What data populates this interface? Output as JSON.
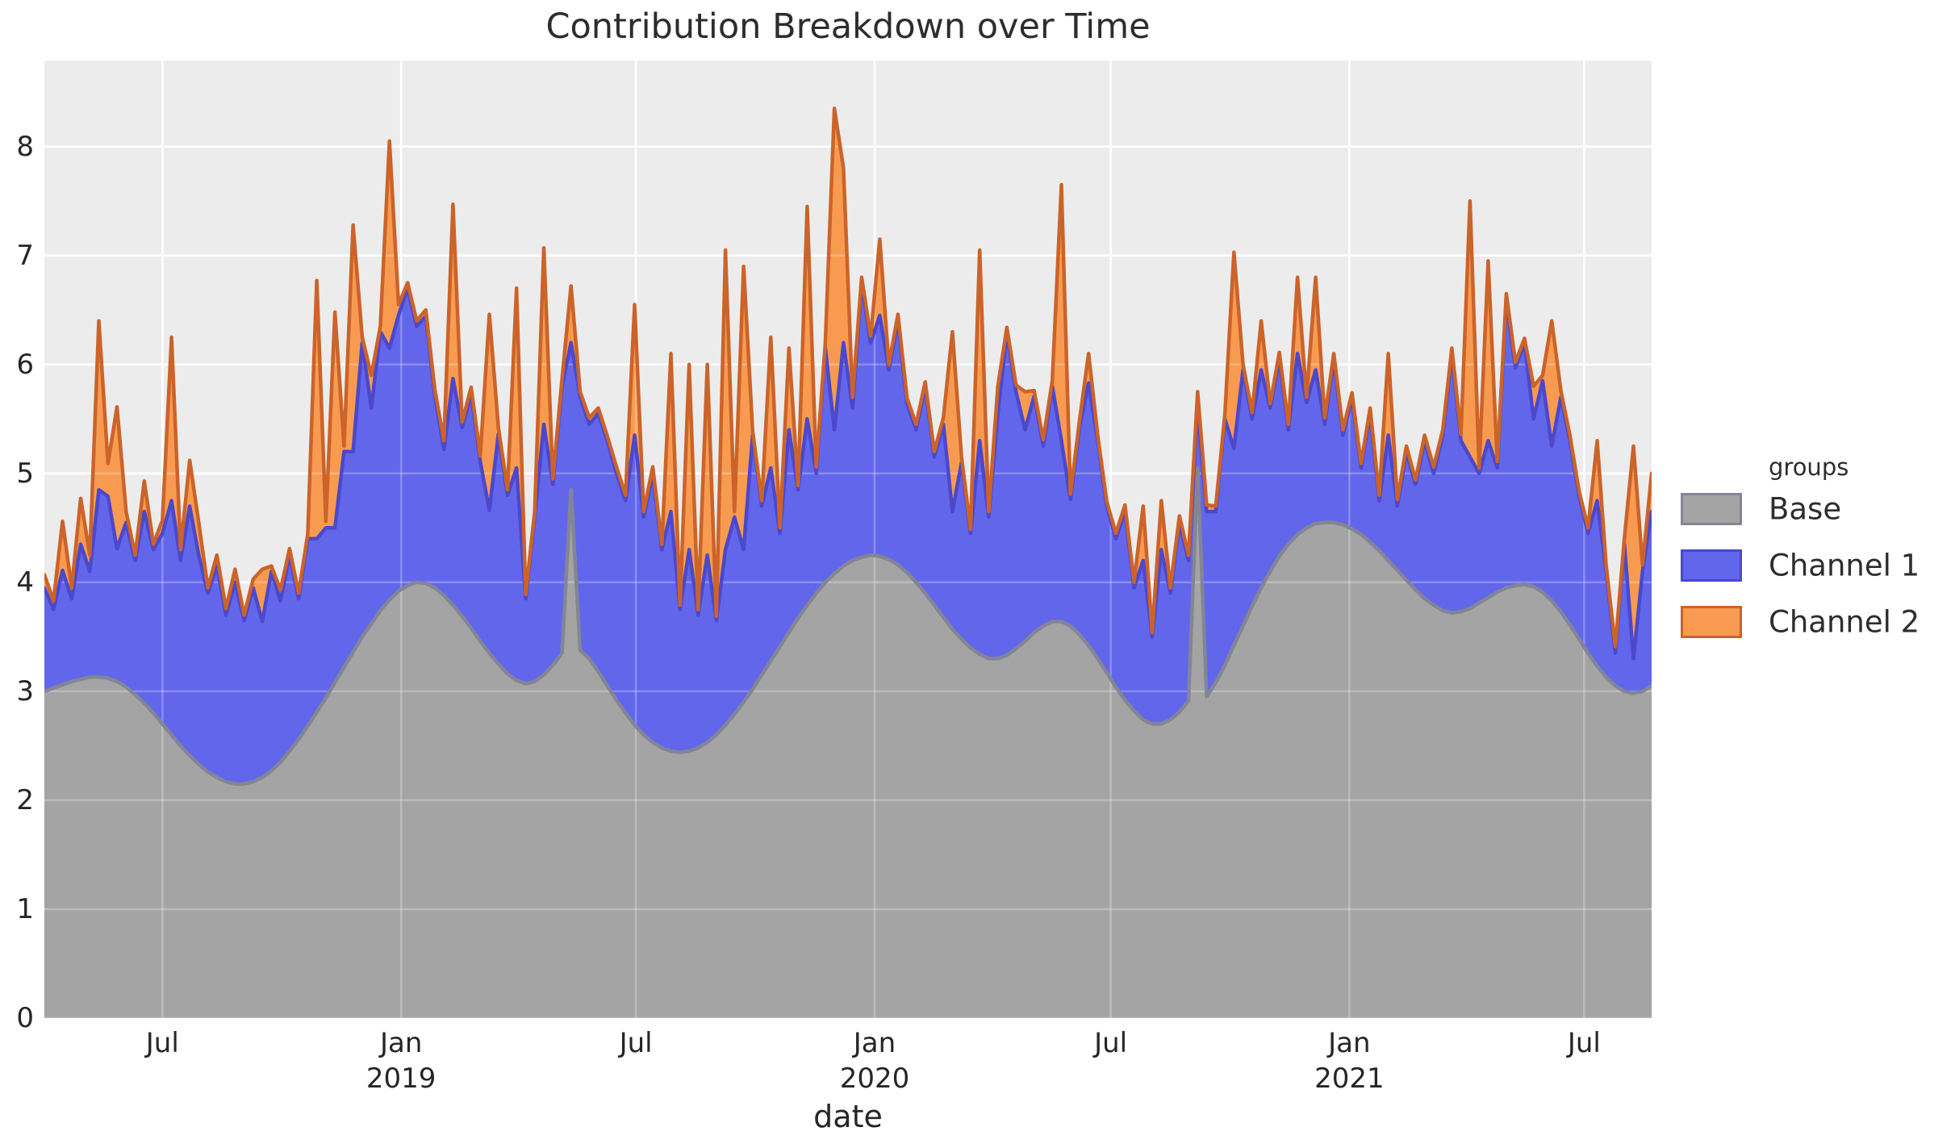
{
  "chart": {
    "title": "Contribution Breakdown over Time"
  },
  "legend": {
    "title": "groups"
  },
  "colors": {
    "figure_bg": "#ffffff",
    "plot_bg": "#ececec",
    "gridline": "#ffffff",
    "tick_text": "#262626",
    "title_text": "#2d2d2d"
  },
  "chart_data": {
    "type": "area",
    "stacked": true,
    "title": "Contribution Breakdown over Time",
    "xlabel": "date",
    "ylabel": "",
    "grid": true,
    "legend_position": "right",
    "ylim": [
      0,
      8.79
    ],
    "yticks": [
      0,
      1,
      2,
      3,
      4,
      5,
      6,
      7,
      8
    ],
    "x_start_date": "2018-04-01",
    "x_step_days": 7,
    "n_points": 178,
    "xticks": [
      {
        "week": 13.0,
        "label": "Jul"
      },
      {
        "week": 39.29,
        "label": "Jan",
        "year": "2019"
      },
      {
        "week": 65.14,
        "label": "Jul"
      },
      {
        "week": 91.43,
        "label": "Jan",
        "year": "2020"
      },
      {
        "week": 117.43,
        "label": "Jul"
      },
      {
        "week": 143.71,
        "label": "Jan",
        "year": "2021"
      },
      {
        "week": 169.57,
        "label": "Jul"
      }
    ],
    "series": [
      {
        "name": "Base",
        "fill": "#a4a4a4",
        "edge": "#828694",
        "values": [
          3.0,
          3.03,
          3.06,
          3.09,
          3.11,
          3.13,
          3.13,
          3.12,
          3.09,
          3.04,
          2.97,
          2.89,
          2.8,
          2.7,
          2.6,
          2.5,
          2.41,
          2.33,
          2.26,
          2.21,
          2.17,
          2.15,
          2.15,
          2.17,
          2.21,
          2.27,
          2.35,
          2.45,
          2.56,
          2.68,
          2.81,
          2.94,
          3.08,
          3.22,
          3.36,
          3.5,
          3.62,
          3.74,
          3.84,
          3.92,
          3.97,
          4.0,
          3.99,
          3.95,
          3.88,
          3.79,
          3.69,
          3.58,
          3.46,
          3.35,
          3.25,
          3.16,
          3.1,
          3.07,
          3.09,
          3.15,
          3.24,
          3.35,
          4.85,
          3.38,
          3.3,
          3.18,
          3.05,
          2.92,
          2.8,
          2.69,
          2.6,
          2.53,
          2.48,
          2.45,
          2.44,
          2.45,
          2.48,
          2.53,
          2.6,
          2.69,
          2.79,
          2.9,
          3.02,
          3.15,
          3.28,
          3.41,
          3.54,
          3.67,
          3.79,
          3.9,
          4.0,
          4.08,
          4.15,
          4.2,
          4.23,
          4.25,
          4.24,
          4.21,
          4.16,
          4.09,
          4.0,
          3.9,
          3.79,
          3.68,
          3.57,
          3.48,
          3.4,
          3.34,
          3.3,
          3.3,
          3.33,
          3.39,
          3.46,
          3.54,
          3.6,
          3.64,
          3.64,
          3.6,
          3.52,
          3.42,
          3.3,
          3.17,
          3.04,
          2.92,
          2.82,
          2.74,
          2.7,
          2.7,
          2.74,
          2.81,
          2.91,
          5.05,
          2.95,
          3.08,
          3.24,
          3.42,
          3.6,
          3.78,
          3.95,
          4.1,
          4.24,
          4.35,
          4.44,
          4.5,
          4.54,
          4.55,
          4.55,
          4.53,
          4.49,
          4.44,
          4.37,
          4.29,
          4.2,
          4.11,
          4.02,
          3.93,
          3.85,
          3.79,
          3.74,
          3.72,
          3.73,
          3.76,
          3.81,
          3.86,
          3.91,
          3.95,
          3.97,
          3.98,
          3.96,
          3.91,
          3.83,
          3.73,
          3.61,
          3.48,
          3.35,
          3.23,
          3.13,
          3.05,
          3.0,
          2.98,
          3.0,
          3.05
        ]
      },
      {
        "name": "Channel 1",
        "fill": "#6266eb",
        "edge": "#4c48cc",
        "values": [
          0.95,
          0.72,
          1.05,
          0.76,
          1.24,
          0.97,
          1.72,
          1.67,
          1.22,
          1.51,
          1.23,
          1.76,
          1.5,
          1.75,
          2.15,
          1.7,
          2.29,
          1.92,
          1.64,
          1.94,
          1.53,
          1.85,
          1.5,
          1.78,
          1.43,
          1.83,
          1.48,
          1.8,
          1.29,
          1.72,
          1.59,
          1.56,
          1.42,
          1.98,
          1.84,
          2.7,
          1.98,
          2.56,
          2.31,
          2.53,
          2.73,
          2.35,
          2.45,
          1.77,
          1.34,
          2.08,
          1.73,
          2.15,
          1.65,
          1.31,
          2.11,
          1.64,
          1.95,
          0.78,
          1.51,
          2.3,
          1.66,
          2.45,
          1.35,
          2.32,
          2.15,
          2.37,
          2.25,
          2.08,
          1.95,
          2.66,
          2.0,
          2.47,
          1.82,
          2.2,
          1.31,
          1.85,
          1.22,
          1.72,
          1.05,
          1.61,
          1.81,
          1.4,
          2.33,
          1.55,
          1.77,
          1.04,
          1.86,
          1.18,
          1.71,
          1.1,
          2.15,
          1.32,
          2.05,
          1.4,
          2.52,
          1.95,
          2.21,
          1.74,
          2.24,
          1.55,
          1.4,
          1.9,
          1.36,
          1.77,
          1.08,
          1.62,
          1.05,
          1.96,
          1.3,
          2.25,
          2.96,
          2.36,
          1.94,
          2.17,
          1.65,
          2.16,
          1.66,
          1.16,
          1.91,
          2.41,
          2.0,
          1.53,
          1.36,
          1.73,
          1.13,
          1.46,
          0.8,
          1.6,
          1.16,
          1.74,
          1.29,
          0.55,
          1.7,
          1.57,
          2.26,
          1.81,
          2.35,
          1.72,
          2.0,
          1.5,
          1.81,
          1.05,
          1.66,
          1.15,
          1.41,
          0.9,
          1.5,
          0.82,
          1.21,
          0.61,
          1.18,
          0.46,
          1.15,
          0.59,
          1.18,
          0.97,
          1.45,
          1.21,
          1.61,
          2.38,
          1.57,
          1.39,
          1.19,
          1.44,
          1.14,
          2.65,
          2.0,
          2.22,
          1.54,
          1.94,
          1.42,
          1.97,
          1.69,
          1.32,
          1.1,
          1.52,
          0.97,
          0.3,
          1.35,
          0.32,
          1.1,
          1.6
        ]
      },
      {
        "name": "Channel 2",
        "fill": "#f89b51",
        "edge": "#cc6329",
        "values": [
          0.12,
          0.08,
          0.45,
          0.1,
          0.42,
          0.15,
          1.55,
          0.3,
          1.3,
          0.1,
          0.05,
          0.28,
          0.05,
          0.12,
          1.5,
          0.1,
          0.42,
          0.3,
          0.05,
          0.1,
          0.06,
          0.12,
          0.05,
          0.08,
          0.48,
          0.05,
          0.1,
          0.06,
          0.05,
          0.04,
          2.37,
          0.06,
          1.98,
          0.05,
          2.08,
          0.05,
          0.3,
          0.05,
          1.9,
          0.1,
          0.05,
          0.05,
          0.06,
          0.05,
          0.08,
          1.6,
          0.05,
          0.06,
          0.05,
          1.8,
          0.06,
          0.05,
          1.65,
          0.04,
          0.05,
          1.62,
          0.05,
          0.06,
          0.52,
          0.05,
          0.06,
          0.05,
          0.04,
          0.06,
          0.05,
          1.2,
          0.05,
          0.06,
          0.05,
          1.45,
          0.04,
          1.7,
          0.05,
          1.75,
          0.04,
          2.75,
          0.05,
          2.6,
          0.04,
          0.05,
          1.2,
          0.05,
          0.75,
          0.04,
          1.95,
          0.06,
          0.05,
          2.95,
          1.6,
          0.1,
          0.05,
          0.06,
          0.7,
          0.05,
          0.06,
          0.05,
          0.05,
          0.04,
          0.05,
          0.06,
          1.65,
          0.05,
          0.04,
          1.75,
          0.05,
          0.25,
          0.05,
          0.06,
          0.35,
          0.05,
          0.06,
          0.05,
          2.35,
          0.05,
          0.06,
          0.27,
          0.05,
          0.04,
          0.05,
          0.06,
          0.05,
          0.5,
          0.04,
          0.45,
          0.05,
          0.06,
          0.05,
          0.15,
          0.06,
          0.05,
          0.04,
          1.8,
          0.05,
          0.06,
          0.45,
          0.04,
          0.06,
          0.05,
          0.7,
          0.05,
          0.85,
          0.06,
          0.05,
          0.05,
          0.04,
          0.04,
          0.05,
          0.05,
          0.75,
          0.06,
          0.05,
          0.04,
          0.05,
          0.06,
          0.05,
          0.05,
          0.06,
          2.35,
          0.05,
          1.65,
          0.06,
          0.05,
          0.05,
          0.04,
          0.3,
          0.05,
          1.15,
          0.06,
          0.05,
          0.04,
          0.05,
          0.55,
          0.05,
          0.06,
          0.05,
          1.95,
          0.06,
          0.35
        ]
      }
    ]
  }
}
